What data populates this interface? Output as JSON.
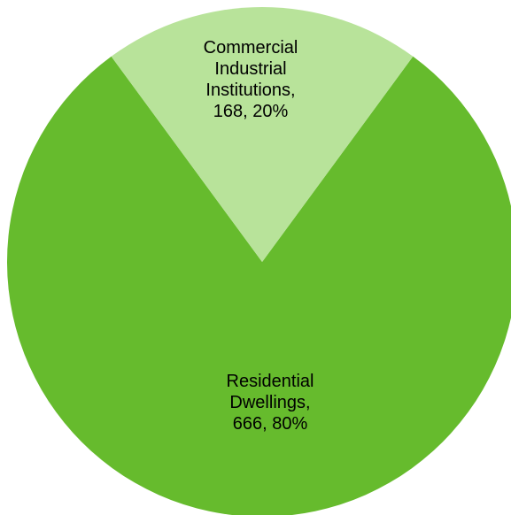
{
  "chart_data": {
    "type": "pie",
    "title": "",
    "slices": [
      {
        "label_lines": [
          "Residential",
          "Dwellings,",
          "666, 80%"
        ],
        "value": 666,
        "percent": 80,
        "color": "#66bb2d"
      },
      {
        "label_lines": [
          "Commercial",
          "Industrial",
          "Institutions,",
          "168, 20%"
        ],
        "value": 168,
        "percent": 20,
        "color": "#b8e39a"
      }
    ],
    "legend": "none"
  }
}
